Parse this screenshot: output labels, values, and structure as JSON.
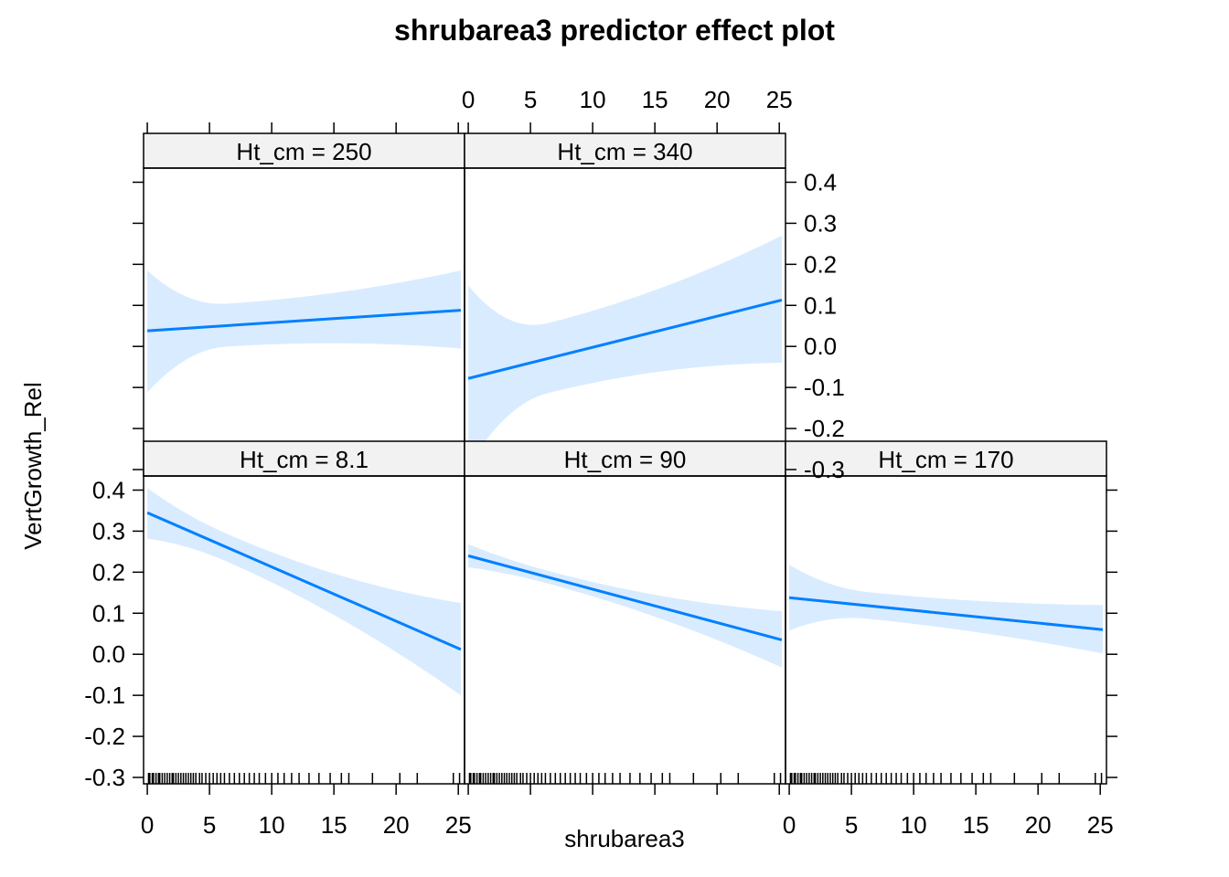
{
  "chart_data": {
    "type": "line",
    "title": "shrubarea3 predictor effect plot",
    "xlabel": "shrubarea3",
    "ylabel": "VertGrowth_Rel",
    "xlim": [
      -0.3,
      25.5
    ],
    "ylim": [
      -0.3,
      0.43
    ],
    "x_ticks": [
      0,
      5,
      10,
      15,
      20,
      25
    ],
    "y_ticks": [
      -0.3,
      -0.2,
      -0.1,
      0.0,
      0.1,
      0.2,
      0.3,
      0.4
    ],
    "x_tick_labels": [
      "0",
      "5",
      "10",
      "15",
      "20",
      "25"
    ],
    "y_tick_labels": [
      "-0.3",
      "-0.2",
      "-0.1",
      "0.0",
      "0.1",
      "0.2",
      "0.3",
      "0.4"
    ],
    "line_color": "#0080ff",
    "band_color": "#d9ebff",
    "strip_color": "#f2f2f2",
    "rug_x": [
      0.1,
      0.2,
      0.4,
      0.5,
      0.7,
      0.9,
      1.0,
      1.2,
      1.4,
      1.6,
      1.8,
      2.0,
      2.1,
      2.3,
      2.5,
      2.7,
      2.9,
      3.1,
      3.3,
      3.5,
      3.7,
      3.9,
      4.2,
      4.4,
      4.7,
      5.0,
      5.3,
      5.6,
      5.9,
      6.2,
      6.6,
      7.0,
      7.4,
      7.8,
      8.2,
      8.6,
      9.0,
      9.5,
      10.0,
      10.5,
      11.0,
      11.6,
      12.2,
      13.0,
      13.8,
      14.7,
      15.6,
      16.2,
      18.1,
      20.3,
      21.7,
      24.6,
      25.1
    ],
    "panels": [
      {
        "strip": "Ht_cm = 250",
        "x": [
          0,
          25.2
        ],
        "fit": [
          0.038,
          0.088
        ],
        "upper": [
          0.185,
          0.185
        ],
        "lower": [
          -0.112,
          -0.005
        ]
      },
      {
        "strip": "Ht_cm = 340",
        "x": [
          0,
          25.2
        ],
        "fit": [
          -0.078,
          0.113
        ],
        "upper": [
          0.148,
          0.27
        ],
        "lower": [
          -0.29,
          -0.04
        ]
      },
      {
        "strip": "Ht_cm = 8.1",
        "x": [
          0,
          25.2
        ],
        "fit": [
          0.345,
          0.012
        ],
        "upper": [
          0.405,
          0.125
        ],
        "lower": [
          0.282,
          -0.1
        ]
      },
      {
        "strip": "Ht_cm = 90",
        "x": [
          0,
          25.2
        ],
        "fit": [
          0.24,
          0.035
        ],
        "upper": [
          0.268,
          0.105
        ],
        "lower": [
          0.212,
          -0.032
        ]
      },
      {
        "strip": "Ht_cm = 170",
        "x": [
          0,
          25.2
        ],
        "fit": [
          0.138,
          0.06
        ],
        "upper": [
          0.218,
          0.12
        ],
        "lower": [
          0.058,
          0.002
        ]
      }
    ]
  }
}
